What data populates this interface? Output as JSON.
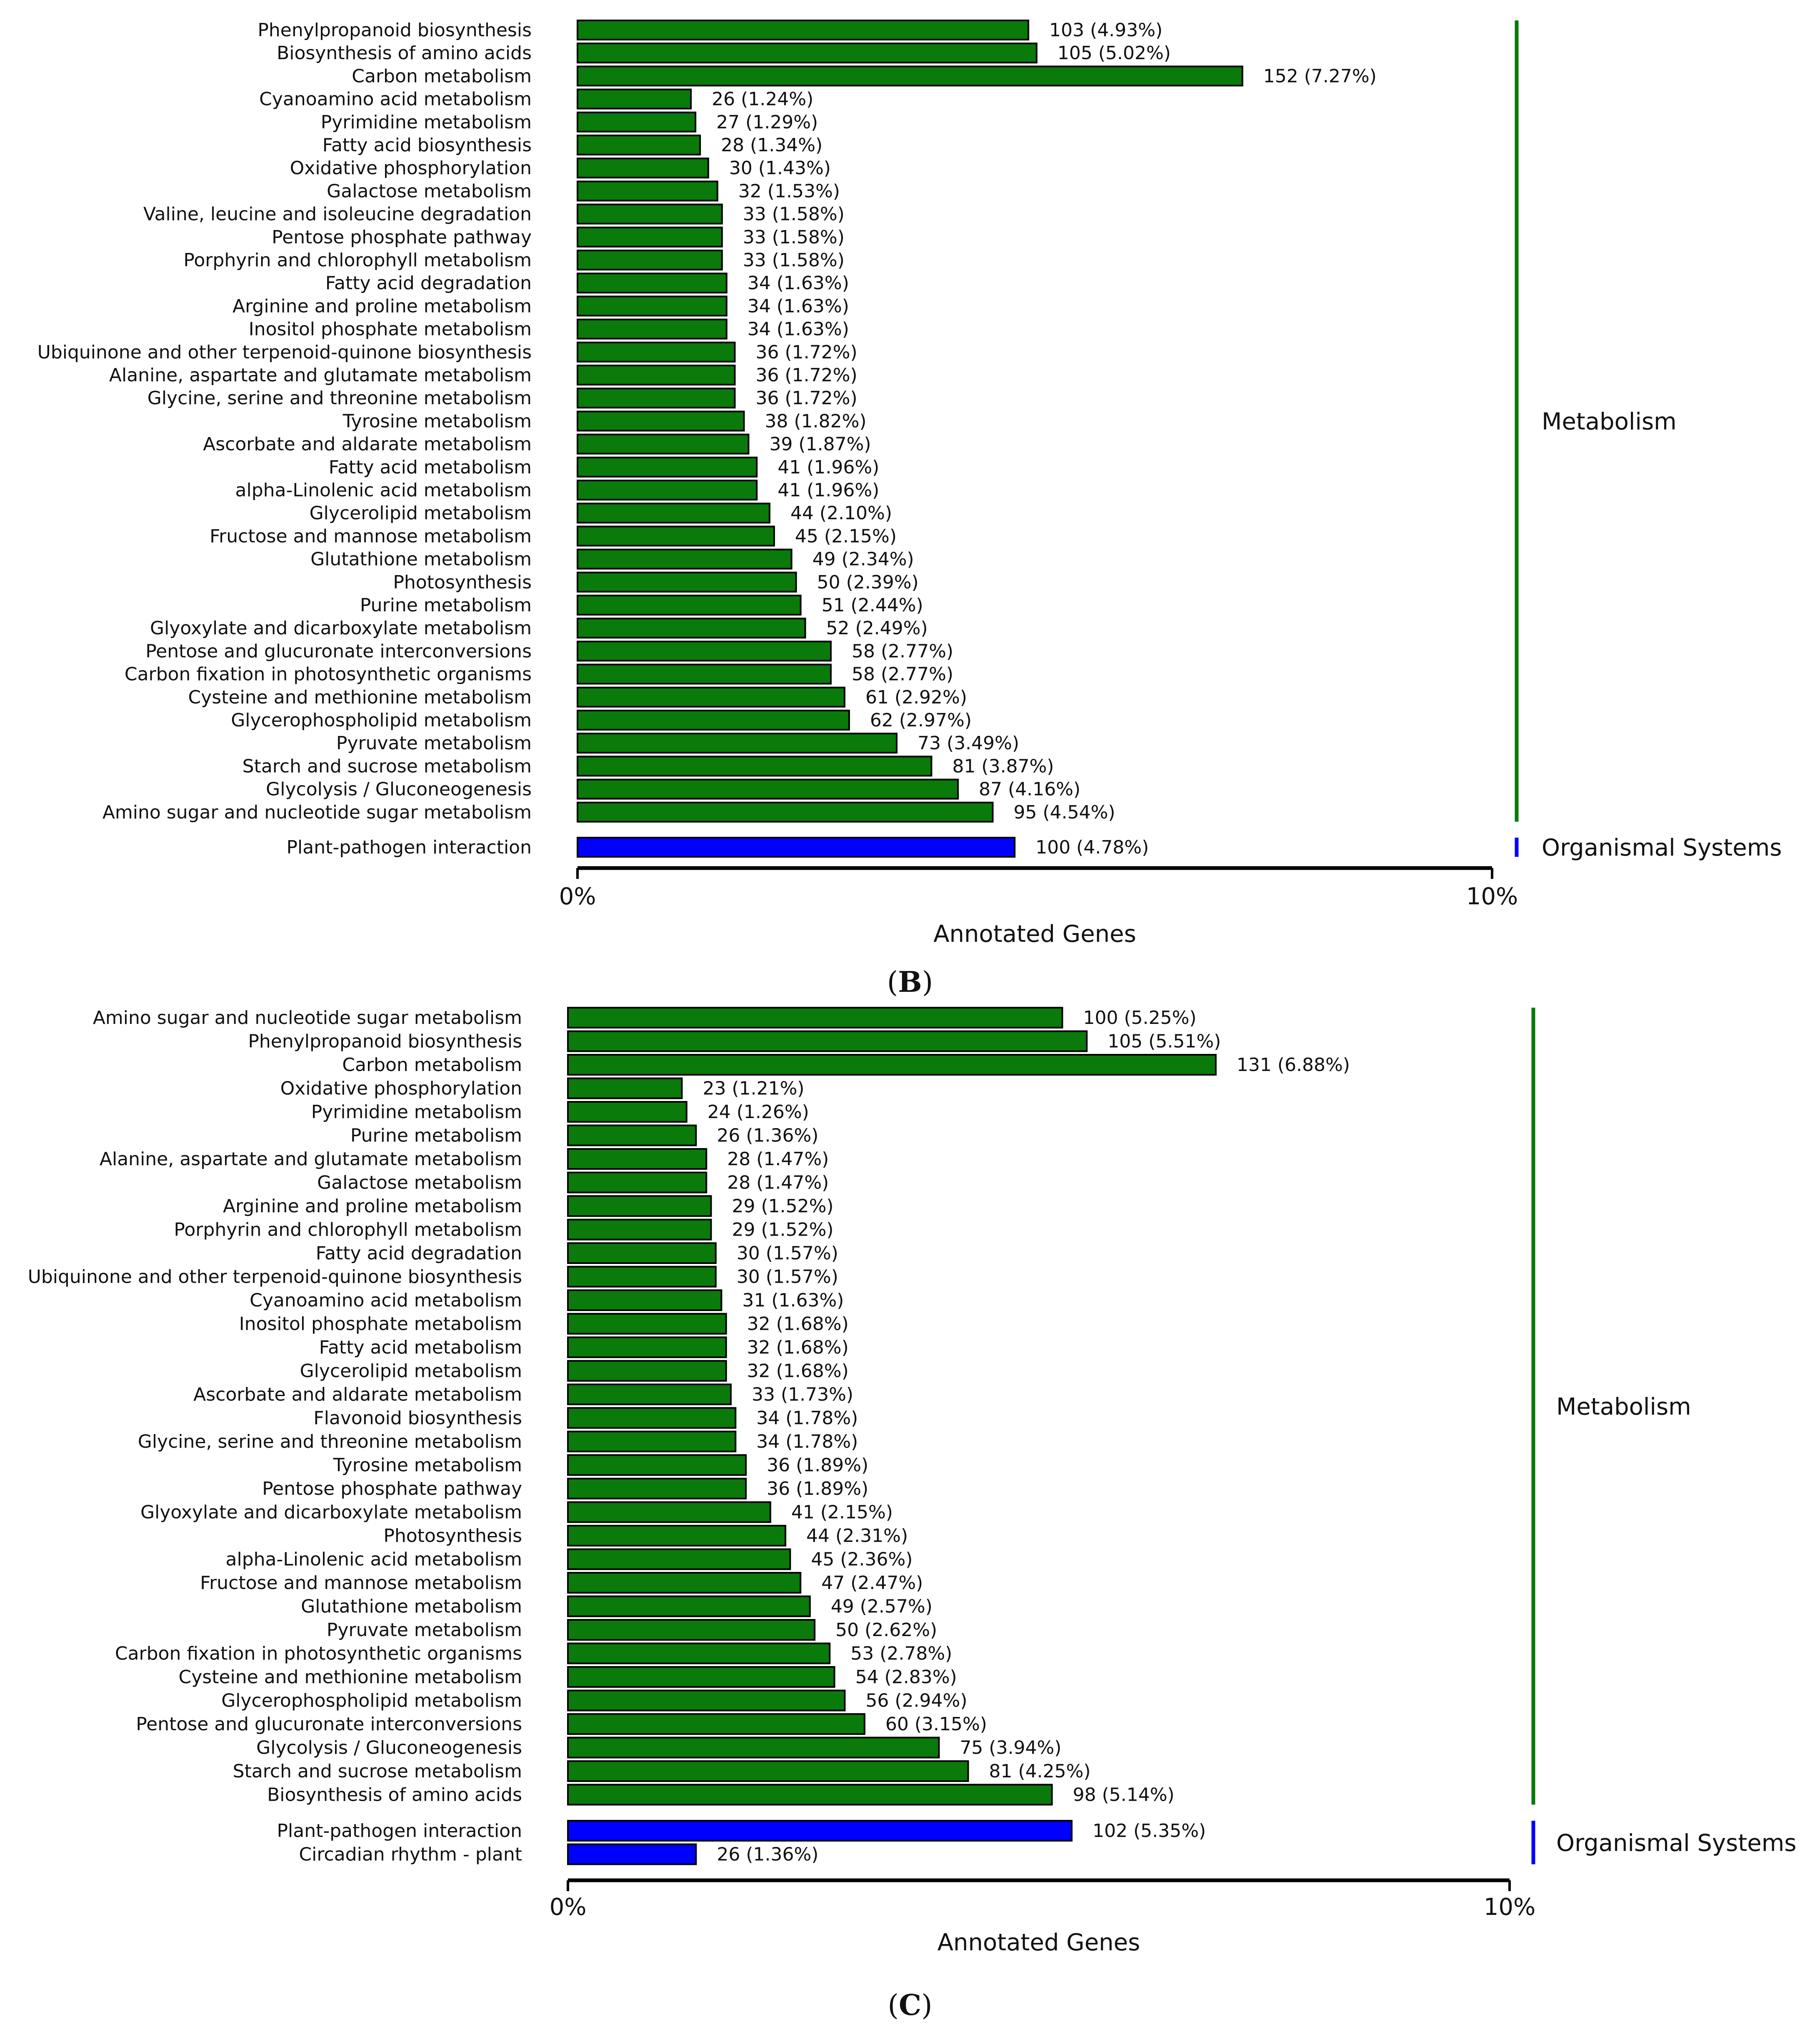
{
  "chart_data": [
    {
      "type": "bar",
      "orientation": "horizontal",
      "caption_letter": "B",
      "xlabel": "Annotated Genes",
      "xlim": [
        0,
        10
      ],
      "xticks": [
        "0%",
        "10%"
      ],
      "colors": {
        "Metabolism": "#0a7a0a",
        "Organismal Systems": "#0000ff"
      },
      "groups": [
        {
          "name": "Metabolism",
          "items": [
            {
              "label": "Phenylpropanoid biosynthesis",
              "count": 103,
              "percent": 4.93,
              "text": "103 (4.93%)"
            },
            {
              "label": "Biosynthesis of amino acids",
              "count": 105,
              "percent": 5.02,
              "text": "105 (5.02%)"
            },
            {
              "label": "Carbon metabolism",
              "count": 152,
              "percent": 7.27,
              "text": "152 (7.27%)"
            },
            {
              "label": "Cyanoamino acid metabolism",
              "count": 26,
              "percent": 1.24,
              "text": "26 (1.24%)"
            },
            {
              "label": "Pyrimidine metabolism",
              "count": 27,
              "percent": 1.29,
              "text": "27 (1.29%)"
            },
            {
              "label": "Fatty acid biosynthesis",
              "count": 28,
              "percent": 1.34,
              "text": "28 (1.34%)"
            },
            {
              "label": "Oxidative phosphorylation",
              "count": 30,
              "percent": 1.43,
              "text": "30 (1.43%)"
            },
            {
              "label": "Galactose metabolism",
              "count": 32,
              "percent": 1.53,
              "text": "32 (1.53%)"
            },
            {
              "label": "Valine, leucine and isoleucine degradation",
              "count": 33,
              "percent": 1.58,
              "text": "33 (1.58%)"
            },
            {
              "label": "Pentose phosphate pathway",
              "count": 33,
              "percent": 1.58,
              "text": "33 (1.58%)"
            },
            {
              "label": "Porphyrin and chlorophyll metabolism",
              "count": 33,
              "percent": 1.58,
              "text": "33 (1.58%)"
            },
            {
              "label": "Fatty acid degradation",
              "count": 34,
              "percent": 1.63,
              "text": "34 (1.63%)"
            },
            {
              "label": "Arginine and proline metabolism",
              "count": 34,
              "percent": 1.63,
              "text": "34 (1.63%)"
            },
            {
              "label": "Inositol phosphate metabolism",
              "count": 34,
              "percent": 1.63,
              "text": "34 (1.63%)"
            },
            {
              "label": "Ubiquinone and other terpenoid-quinone biosynthesis",
              "count": 36,
              "percent": 1.72,
              "text": "36 (1.72%)"
            },
            {
              "label": "Alanine, aspartate and glutamate metabolism",
              "count": 36,
              "percent": 1.72,
              "text": "36 (1.72%)"
            },
            {
              "label": "Glycine, serine and threonine metabolism",
              "count": 36,
              "percent": 1.72,
              "text": "36 (1.72%)"
            },
            {
              "label": "Tyrosine metabolism",
              "count": 38,
              "percent": 1.82,
              "text": "38 (1.82%)"
            },
            {
              "label": "Ascorbate and aldarate metabolism",
              "count": 39,
              "percent": 1.87,
              "text": "39 (1.87%)"
            },
            {
              "label": "Fatty acid metabolism",
              "count": 41,
              "percent": 1.96,
              "text": "41 (1.96%)"
            },
            {
              "label": "alpha-Linolenic acid metabolism",
              "count": 41,
              "percent": 1.96,
              "text": "41 (1.96%)"
            },
            {
              "label": "Glycerolipid metabolism",
              "count": 44,
              "percent": 2.1,
              "text": "44 (2.10%)"
            },
            {
              "label": "Fructose and mannose metabolism",
              "count": 45,
              "percent": 2.15,
              "text": "45 (2.15%)"
            },
            {
              "label": "Glutathione metabolism",
              "count": 49,
              "percent": 2.34,
              "text": "49 (2.34%)"
            },
            {
              "label": "Photosynthesis",
              "count": 50,
              "percent": 2.39,
              "text": "50 (2.39%)"
            },
            {
              "label": "Purine metabolism",
              "count": 51,
              "percent": 2.44,
              "text": "51 (2.44%)"
            },
            {
              "label": "Glyoxylate and dicarboxylate metabolism",
              "count": 52,
              "percent": 2.49,
              "text": "52 (2.49%)"
            },
            {
              "label": "Pentose and glucuronate interconversions",
              "count": 58,
              "percent": 2.77,
              "text": "58 (2.77%)"
            },
            {
              "label": "Carbon fixation in photosynthetic organisms",
              "count": 58,
              "percent": 2.77,
              "text": "58 (2.77%)"
            },
            {
              "label": "Cysteine and methionine metabolism",
              "count": 61,
              "percent": 2.92,
              "text": "61 (2.92%)"
            },
            {
              "label": "Glycerophospholipid metabolism",
              "count": 62,
              "percent": 2.97,
              "text": "62 (2.97%)"
            },
            {
              "label": "Pyruvate metabolism",
              "count": 73,
              "percent": 3.49,
              "text": "73 (3.49%)"
            },
            {
              "label": "Starch and sucrose metabolism",
              "count": 81,
              "percent": 3.87,
              "text": "81 (3.87%)"
            },
            {
              "label": "Glycolysis / Gluconeogenesis",
              "count": 87,
              "percent": 4.16,
              "text": "87 (4.16%)"
            },
            {
              "label": "Amino sugar and nucleotide sugar metabolism",
              "count": 95,
              "percent": 4.54,
              "text": "95 (4.54%)"
            }
          ]
        },
        {
          "name": "Organismal Systems",
          "items": [
            {
              "label": "Plant-pathogen interaction",
              "count": 100,
              "percent": 4.78,
              "text": "100 (4.78%)"
            }
          ]
        }
      ]
    },
    {
      "type": "bar",
      "orientation": "horizontal",
      "caption_letter": "C",
      "xlabel": "Annotated Genes",
      "xlim": [
        0,
        10
      ],
      "xticks": [
        "0%",
        "10%"
      ],
      "colors": {
        "Metabolism": "#0a7a0a",
        "Organismal Systems": "#0000ff"
      },
      "groups": [
        {
          "name": "Metabolism",
          "items": [
            {
              "label": "Amino sugar and nucleotide sugar metabolism",
              "count": 100,
              "percent": 5.25,
              "text": "100 (5.25%)"
            },
            {
              "label": "Phenylpropanoid biosynthesis",
              "count": 105,
              "percent": 5.51,
              "text": "105 (5.51%)"
            },
            {
              "label": "Carbon metabolism",
              "count": 131,
              "percent": 6.88,
              "text": "131 (6.88%)"
            },
            {
              "label": "Oxidative phosphorylation",
              "count": 23,
              "percent": 1.21,
              "text": "23 (1.21%)"
            },
            {
              "label": "Pyrimidine metabolism",
              "count": 24,
              "percent": 1.26,
              "text": "24 (1.26%)"
            },
            {
              "label": "Purine metabolism",
              "count": 26,
              "percent": 1.36,
              "text": "26 (1.36%)"
            },
            {
              "label": "Alanine, aspartate and glutamate metabolism",
              "count": 28,
              "percent": 1.47,
              "text": "28 (1.47%)"
            },
            {
              "label": "Galactose metabolism",
              "count": 28,
              "percent": 1.47,
              "text": "28 (1.47%)"
            },
            {
              "label": "Arginine and proline metabolism",
              "count": 29,
              "percent": 1.52,
              "text": "29 (1.52%)"
            },
            {
              "label": "Porphyrin and chlorophyll metabolism",
              "count": 29,
              "percent": 1.52,
              "text": "29 (1.52%)"
            },
            {
              "label": "Fatty acid degradation",
              "count": 30,
              "percent": 1.57,
              "text": "30 (1.57%)"
            },
            {
              "label": "Ubiquinone and other terpenoid-quinone biosynthesis",
              "count": 30,
              "percent": 1.57,
              "text": "30 (1.57%)"
            },
            {
              "label": "Cyanoamino acid metabolism",
              "count": 31,
              "percent": 1.63,
              "text": "31 (1.63%)"
            },
            {
              "label": "Inositol phosphate metabolism",
              "count": 32,
              "percent": 1.68,
              "text": "32 (1.68%)"
            },
            {
              "label": "Fatty acid metabolism",
              "count": 32,
              "percent": 1.68,
              "text": "32 (1.68%)"
            },
            {
              "label": "Glycerolipid metabolism",
              "count": 32,
              "percent": 1.68,
              "text": "32 (1.68%)"
            },
            {
              "label": "Ascorbate and aldarate metabolism",
              "count": 33,
              "percent": 1.73,
              "text": "33 (1.73%)"
            },
            {
              "label": "Flavonoid biosynthesis",
              "count": 34,
              "percent": 1.78,
              "text": "34 (1.78%)"
            },
            {
              "label": "Glycine, serine and threonine metabolism",
              "count": 34,
              "percent": 1.78,
              "text": "34 (1.78%)"
            },
            {
              "label": "Tyrosine metabolism",
              "count": 36,
              "percent": 1.89,
              "text": "36 (1.89%)"
            },
            {
              "label": "Pentose phosphate pathway",
              "count": 36,
              "percent": 1.89,
              "text": "36 (1.89%)"
            },
            {
              "label": "Glyoxylate and dicarboxylate metabolism",
              "count": 41,
              "percent": 2.15,
              "text": "41 (2.15%)"
            },
            {
              "label": "Photosynthesis",
              "count": 44,
              "percent": 2.31,
              "text": "44 (2.31%)"
            },
            {
              "label": "alpha-Linolenic acid metabolism",
              "count": 45,
              "percent": 2.36,
              "text": "45 (2.36%)"
            },
            {
              "label": "Fructose and mannose metabolism",
              "count": 47,
              "percent": 2.47,
              "text": "47 (2.47%)"
            },
            {
              "label": "Glutathione metabolism",
              "count": 49,
              "percent": 2.57,
              "text": "49 (2.57%)"
            },
            {
              "label": "Pyruvate metabolism",
              "count": 50,
              "percent": 2.62,
              "text": "50 (2.62%)"
            },
            {
              "label": "Carbon fixation in photosynthetic organisms",
              "count": 53,
              "percent": 2.78,
              "text": "53 (2.78%)"
            },
            {
              "label": "Cysteine and methionine metabolism",
              "count": 54,
              "percent": 2.83,
              "text": "54 (2.83%)"
            },
            {
              "label": "Glycerophospholipid metabolism",
              "count": 56,
              "percent": 2.94,
              "text": "56 (2.94%)"
            },
            {
              "label": "Pentose and glucuronate interconversions",
              "count": 60,
              "percent": 3.15,
              "text": "60 (3.15%)"
            },
            {
              "label": "Glycolysis / Gluconeogenesis",
              "count": 75,
              "percent": 3.94,
              "text": "75 (3.94%)"
            },
            {
              "label": "Starch and sucrose metabolism",
              "count": 81,
              "percent": 4.25,
              "text": "81 (4.25%)"
            },
            {
              "label": "Biosynthesis of amino acids",
              "count": 98,
              "percent": 5.14,
              "text": "98 (5.14%)"
            }
          ]
        },
        {
          "name": "Organismal Systems",
          "items": [
            {
              "label": "Plant-pathogen interaction",
              "count": 102,
              "percent": 5.35,
              "text": "102 (5.35%)"
            },
            {
              "label": "Circadian rhythm - plant",
              "count": 26,
              "percent": 1.36,
              "text": "26 (1.36%)"
            }
          ]
        }
      ]
    }
  ]
}
